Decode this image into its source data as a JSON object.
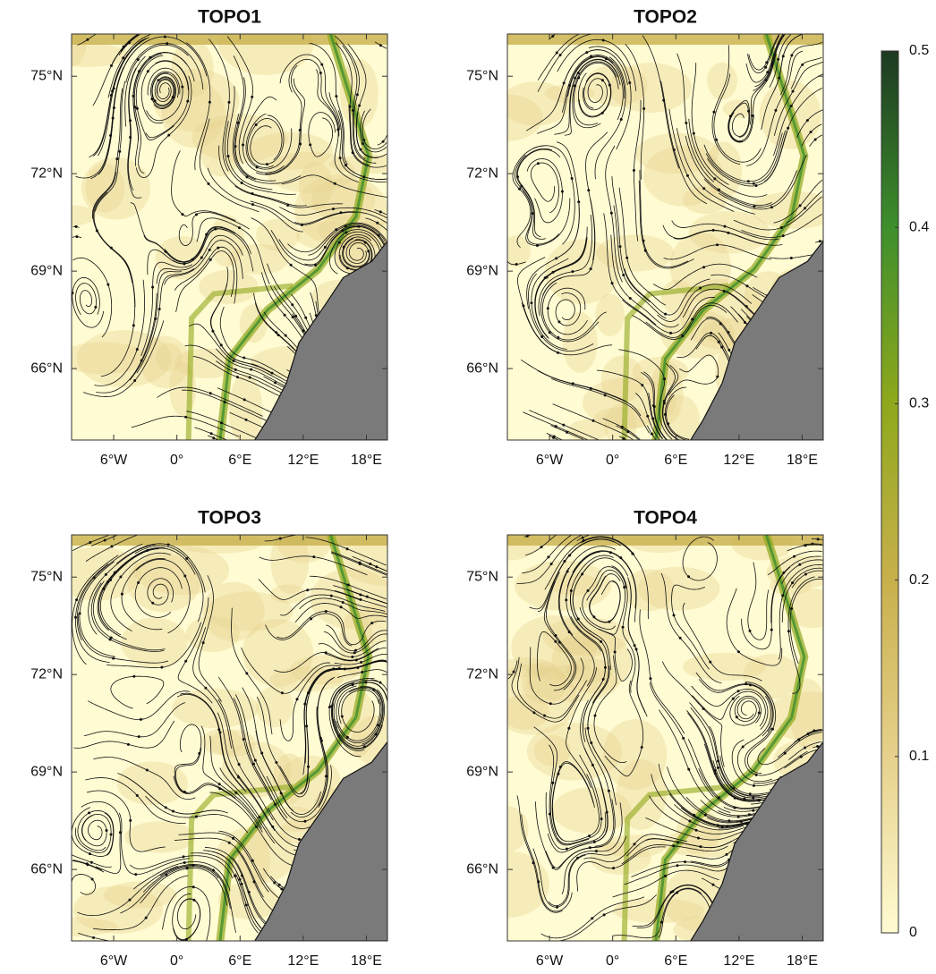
{
  "chart_data": [
    {
      "type": "map",
      "title": "TOPO1",
      "xlim": [
        -10,
        20
      ],
      "ylim": [
        63.8,
        76.3
      ],
      "xticks": [
        {
          "value": -6,
          "label": "6°W"
        },
        {
          "value": 0,
          "label": "0°"
        },
        {
          "value": 6,
          "label": "6°E"
        },
        {
          "value": 12,
          "label": "12°E"
        },
        {
          "value": 18,
          "label": "18°E"
        }
      ],
      "yticks": [
        {
          "value": 66,
          "label": "66°N"
        },
        {
          "value": 69,
          "label": "69°N"
        },
        {
          "value": 72,
          "label": "72°N"
        },
        {
          "value": 75,
          "label": "75°N"
        }
      ]
    },
    {
      "type": "map",
      "title": "TOPO2",
      "xlim": [
        -10,
        20
      ],
      "ylim": [
        63.8,
        76.3
      ],
      "xticks": [
        {
          "value": -6,
          "label": "6°W"
        },
        {
          "value": 0,
          "label": "0°"
        },
        {
          "value": 6,
          "label": "6°E"
        },
        {
          "value": 12,
          "label": "12°E"
        },
        {
          "value": 18,
          "label": "18°E"
        }
      ],
      "yticks": [
        {
          "value": 66,
          "label": "66°N"
        },
        {
          "value": 69,
          "label": "69°N"
        },
        {
          "value": 72,
          "label": "72°N"
        },
        {
          "value": 75,
          "label": "75°N"
        }
      ]
    },
    {
      "type": "map",
      "title": "TOPO3",
      "xlim": [
        -10,
        20
      ],
      "ylim": [
        63.8,
        76.3
      ],
      "xticks": [
        {
          "value": -6,
          "label": "6°W"
        },
        {
          "value": 0,
          "label": "0°"
        },
        {
          "value": 6,
          "label": "6°E"
        },
        {
          "value": 12,
          "label": "12°E"
        },
        {
          "value": 18,
          "label": "18°E"
        }
      ],
      "yticks": [
        {
          "value": 66,
          "label": "66°N"
        },
        {
          "value": 69,
          "label": "69°N"
        },
        {
          "value": 72,
          "label": "72°N"
        },
        {
          "value": 75,
          "label": "75°N"
        }
      ]
    },
    {
      "type": "map",
      "title": "TOPO4",
      "xlim": [
        -10,
        20
      ],
      "ylim": [
        63.8,
        76.3
      ],
      "xticks": [
        {
          "value": -6,
          "label": "6°W"
        },
        {
          "value": 0,
          "label": "0°"
        },
        {
          "value": 6,
          "label": "6°E"
        },
        {
          "value": 12,
          "label": "12°E"
        },
        {
          "value": 18,
          "label": "18°E"
        }
      ],
      "yticks": [
        {
          "value": 66,
          "label": "66°N"
        },
        {
          "value": 69,
          "label": "69°N"
        },
        {
          "value": 72,
          "label": "72°N"
        },
        {
          "value": 75,
          "label": "75°N"
        }
      ]
    },
    {
      "type": "colorbar",
      "ylim": [
        0,
        0.5
      ],
      "yticks": [
        0,
        0.1,
        0.2,
        0.3,
        0.4,
        0.5
      ],
      "colors": [
        "#fffbd2",
        "#e6d18c",
        "#c8b04c",
        "#8fa81c",
        "#3e8f2c",
        "#1d3a22"
      ]
    }
  ]
}
